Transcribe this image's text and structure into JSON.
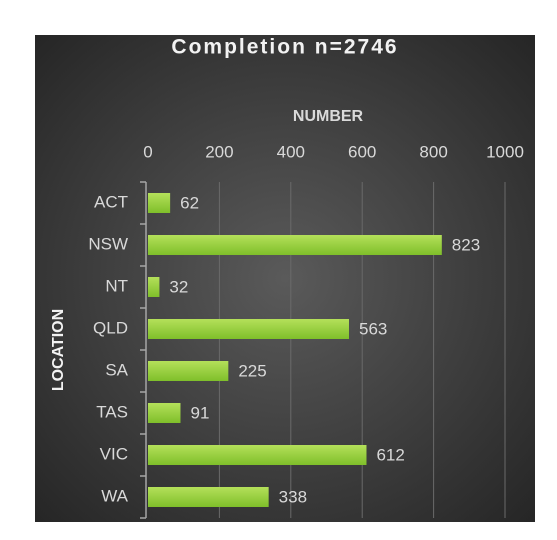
{
  "chart_data": {
    "type": "barh",
    "title": "Completion n=2746",
    "x_label": "NUMBER",
    "y_label": "LOCATION",
    "categories": [
      "ACT",
      "NSW",
      "NT",
      "QLD",
      "SA",
      "TAS",
      "VIC",
      "WA"
    ],
    "values": [
      62,
      823,
      32,
      563,
      225,
      91,
      612,
      338
    ],
    "color": "#92d050",
    "xlim": [
      0,
      1000
    ],
    "xticks": [
      0,
      200,
      400,
      600,
      800,
      1000
    ],
    "grid": true
  }
}
